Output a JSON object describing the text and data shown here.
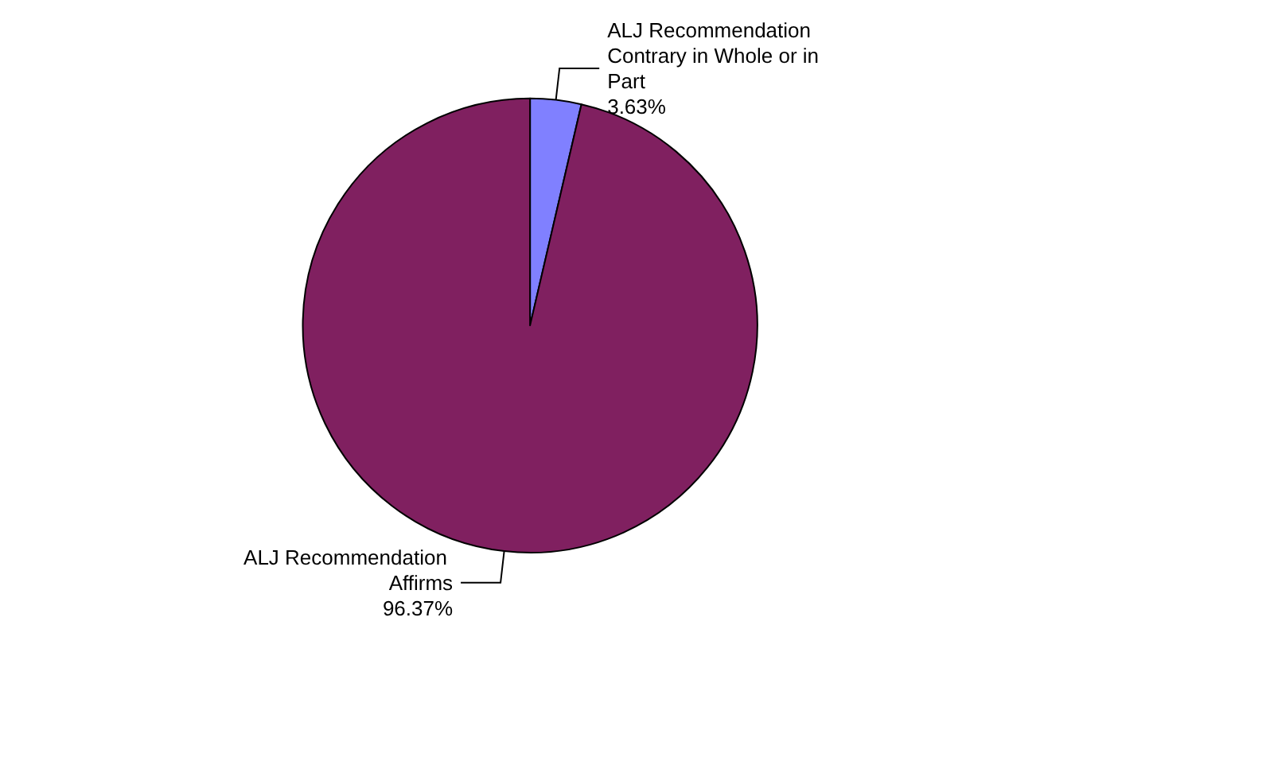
{
  "chart_data": {
    "type": "pie",
    "categories": [
      "ALJ Recommendation Contrary in Whole or in Part",
      "ALJ Recommendation Affirms"
    ],
    "values": [
      3.63,
      96.37
    ],
    "colors": [
      "#8080ff",
      "#802060"
    ],
    "value_labels": [
      "3.63%",
      "96.37%"
    ]
  }
}
